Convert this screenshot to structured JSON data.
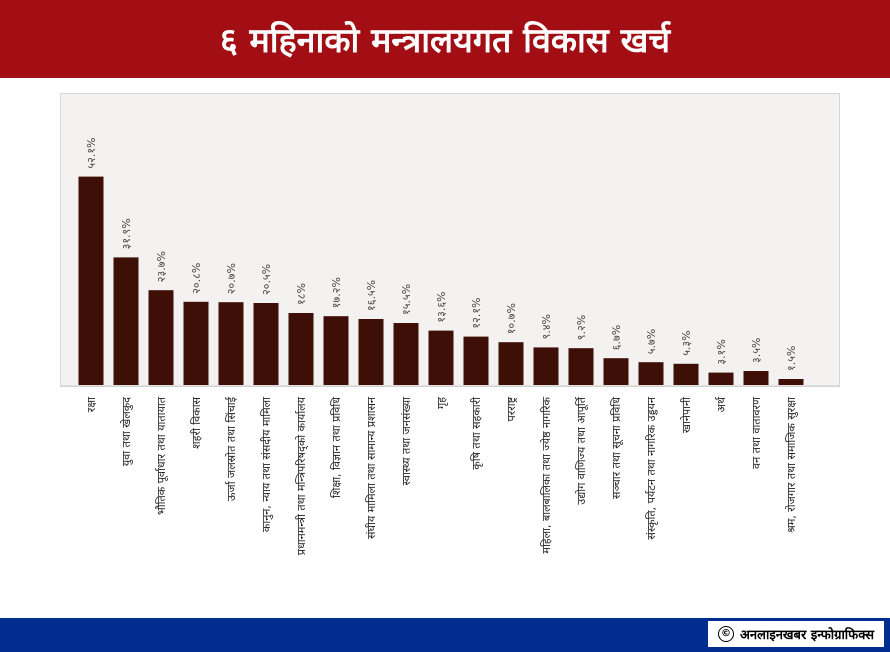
{
  "header": {
    "title": "६ महिनाको मन्त्रालयगत विकास खर्च"
  },
  "footer": {
    "credit": "अनलाइनखबर इन्फोग्राफिक्स",
    "copyright_icon": "copyright-icon"
  },
  "colors": {
    "banner": "#a30d14",
    "bar": "#3d0f06",
    "footer": "#002d8f"
  },
  "chart_data": {
    "type": "bar",
    "title": "",
    "xlabel": "",
    "ylabel": "",
    "ylim": [
      0,
      65
    ],
    "grid": false,
    "categories": [
      "रक्षा",
      "युवा तथा खेलकुद",
      "भौतिक पूर्वाधार तथा यातायात",
      "शहरी विकास",
      "ऊर्जा जलस्रोत तथा सिंचाई",
      "कानुन, न्याय तथा संसदीय मामिला",
      "प्रधानमन्त्री तथा मन्त्रिपरिषद्को कार्यालय",
      "शिक्षा, विज्ञान तथा प्रविधि",
      "संघीय मामिला तथा सामान्य प्रशासन",
      "स्वास्थ्य तथा जनसंख्या",
      "गृह",
      "कृषि तथा सहकारी",
      "परराष्ट्र",
      "महिला, बालबालिका तथा ज्येष्ठ नागरिक",
      "उद्योग वाणिज्य तथा आपूर्ति",
      "सञ्चार तथा सूचना प्रविधि",
      "संस्कृति, पर्यटन तथा नागरिक उड्डयन",
      "खानेपानी",
      "अर्थ",
      "वन तथा वातावरण",
      "श्रम, रोजगार तथा समाजिक सुरक्षा"
    ],
    "values": [
      52.1,
      31.9,
      23.7,
      20.8,
      20.7,
      20.5,
      18.0,
      17.2,
      16.5,
      15.5,
      13.6,
      12.1,
      10.7,
      9.4,
      9.2,
      6.7,
      5.7,
      5.3,
      3.1,
      3.5,
      1.5
    ],
    "data_labels": [
      "५२.१%",
      "३१.९%",
      "२३.७%",
      "२०.८%",
      "२०.७%",
      "२०.५%",
      "१८%",
      "१७.२%",
      "१६.५%",
      "१५.५%",
      "१३.६%",
      "१२.१%",
      "१०.७%",
      "९.४%",
      "९.२%",
      "६.७%",
      "५.७%",
      "५.३%",
      "३.१%",
      "३.५%",
      "१.५%"
    ]
  }
}
